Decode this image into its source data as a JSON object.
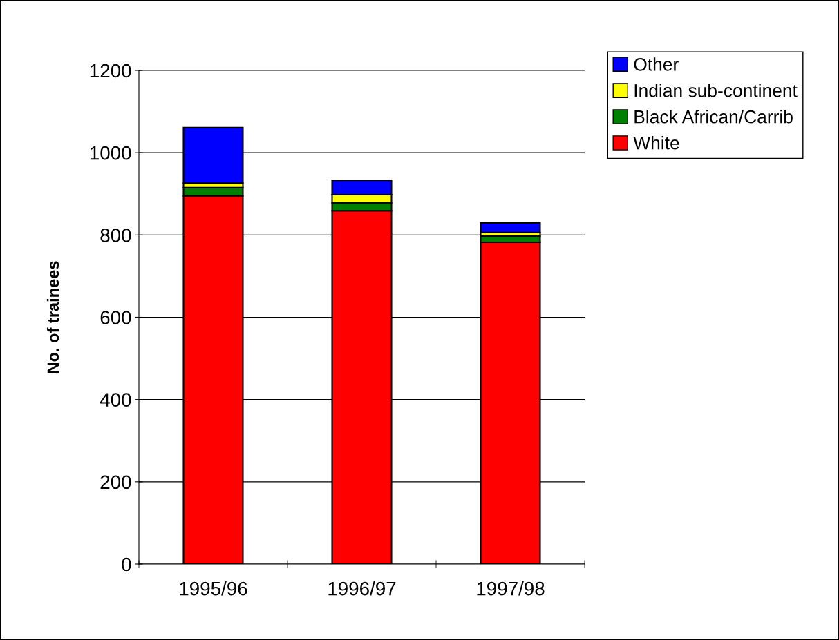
{
  "chart_data": {
    "type": "bar",
    "stacked": true,
    "ylabel": "No. of trainees",
    "categories": [
      "1995/96",
      "1996/97",
      "1997/98"
    ],
    "series": [
      {
        "name": "White",
        "color": "#ff0000",
        "values": [
          895,
          859,
          782
        ]
      },
      {
        "name": "Black African/Carrib",
        "color": "#008000",
        "values": [
          20,
          19,
          15
        ]
      },
      {
        "name": "Indian sub-continent",
        "color": "#ffff00",
        "values": [
          11,
          20,
          9
        ]
      },
      {
        "name": "Other",
        "color": "#0000ff",
        "values": [
          135,
          35,
          23
        ]
      }
    ],
    "ylim": [
      0,
      1200
    ],
    "yticks": [
      0,
      200,
      400,
      600,
      800,
      1000,
      1200
    ],
    "grid": "y",
    "legend": "top right"
  }
}
